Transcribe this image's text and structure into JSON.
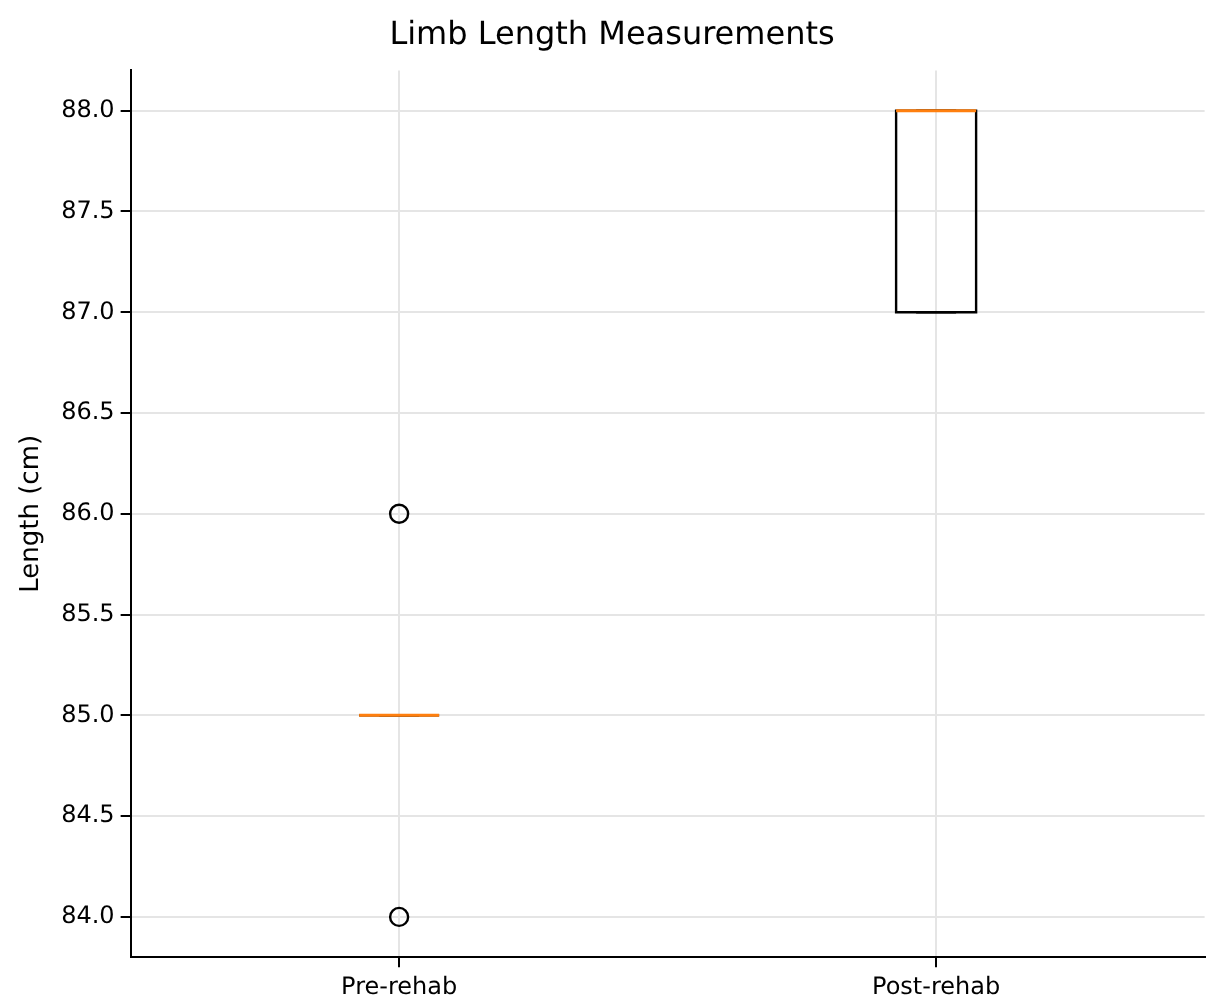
{
  "chart_data": {
    "type": "box",
    "title": "Limb Length Measurements",
    "ylabel": "Length (cm)",
    "categories": [
      "Pre-rehab",
      "Post-rehab"
    ],
    "series": [
      {
        "color": "#000000",
        "boxes": [
          {
            "low": 85,
            "q1": 85,
            "median": 85,
            "q3": 85,
            "high": 85,
            "outliers": [
              84,
              86
            ]
          },
          {
            "low": 87,
            "q1": 87,
            "median": 88,
            "q3": 88,
            "high": 88
          }
        ]
      }
    ],
    "ylim": [
      83.8,
      88.2
    ],
    "yticks": [
      {
        "value": 84,
        "label": "84.0"
      },
      {
        "value": 84.5,
        "label": "84.5"
      },
      {
        "value": 85,
        "label": "85.0"
      },
      {
        "value": 85.5,
        "label": "85.5"
      },
      {
        "value": 86,
        "label": "86.0"
      },
      {
        "value": 86.5,
        "label": "86.5"
      },
      {
        "value": 87,
        "label": "87.0"
      },
      {
        "value": 87.5,
        "label": "87.5"
      },
      {
        "value": 88,
        "label": "88.0"
      }
    ],
    "grid": true,
    "marker": "circle",
    "legend": false
  }
}
